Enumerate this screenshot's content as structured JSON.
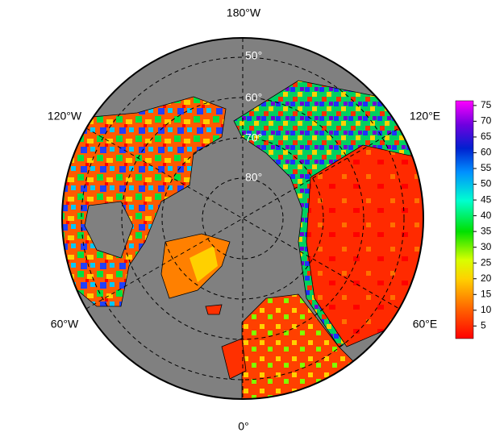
{
  "map": {
    "longitude_labels": {
      "top": "180°W",
      "upper_left": "120°W",
      "upper_right": "120°E",
      "lower_left": "60°W",
      "lower_right": "60°E",
      "bottom": "0°"
    },
    "latitude_labels": [
      "50°",
      "60°",
      "70°",
      "80°"
    ],
    "colorbar": {
      "range": [
        1,
        76.5
      ],
      "ticks": [
        5,
        10,
        15,
        20,
        25,
        30,
        35,
        40,
        45,
        50,
        55,
        60,
        65,
        70,
        75
      ]
    }
  }
}
